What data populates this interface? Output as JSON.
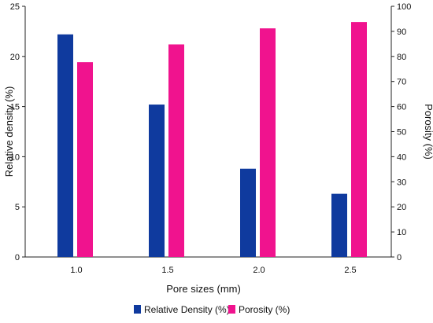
{
  "chart_data": {
    "type": "bar",
    "categories": [
      "1.0",
      "1.5",
      "2.0",
      "2.5"
    ],
    "xlabel": "Pore sizes (mm)",
    "ylabel": "Relative density (%)",
    "y2label": "Porosity (%)",
    "ylim": [
      0,
      25
    ],
    "y2lim": [
      0,
      100
    ],
    "yticks": [
      "0",
      "5",
      "10",
      "15",
      "20",
      "25"
    ],
    "y2ticks": [
      "0",
      "10",
      "20",
      "30",
      "40",
      "50",
      "60",
      "70",
      "80",
      "90",
      "100"
    ],
    "series": [
      {
        "name": "Relative Density (%)",
        "axis": "left",
        "color": "#0f3a9e",
        "values": [
          22.2,
          15.2,
          8.8,
          6.3
        ]
      },
      {
        "name": "Porosity (%)",
        "axis": "right",
        "color": "#f0138e",
        "values": [
          77.7,
          84.8,
          91.2,
          93.7
        ]
      }
    ],
    "legend_position": "bottom",
    "grid": false
  }
}
